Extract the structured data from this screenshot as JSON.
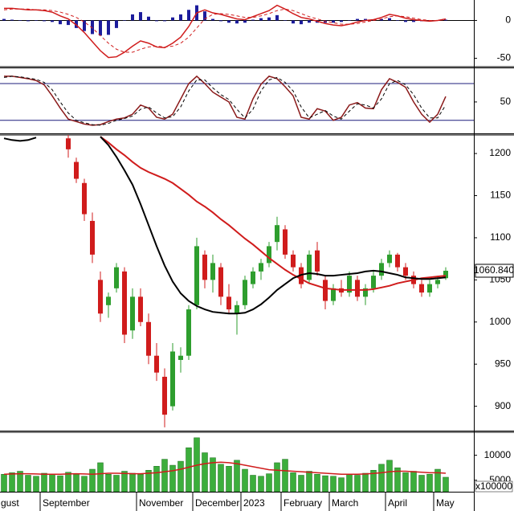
{
  "chart_data": [
    {
      "type": "macd",
      "ylim": [
        -60,
        27
      ],
      "yticks": [
        0,
        -50
      ],
      "zero_line": true,
      "histogram": {
        "color": "#1c1c9c",
        "values": [
          2,
          1,
          0,
          -1,
          0,
          -1,
          -2,
          -5,
          -6,
          -10,
          -14,
          -18,
          -20,
          -19,
          -10,
          0,
          8,
          11,
          5,
          -1,
          -1,
          4,
          8,
          14,
          20,
          12,
          2,
          -1,
          -3,
          -4,
          -3,
          1,
          3,
          4,
          7,
          0,
          -4,
          -5,
          -3,
          -3,
          -3,
          -3,
          -2,
          0,
          2,
          2,
          1,
          2,
          3,
          0,
          -2,
          -2,
          -1,
          -1,
          0,
          1
        ]
      },
      "series": [
        {
          "color": "#d01c1c",
          "dashed": false,
          "values": [
            16,
            16,
            15,
            14,
            14,
            13,
            11,
            6,
            2,
            -6,
            -16,
            -28,
            -40,
            -49,
            -48,
            -42,
            -34,
            -27,
            -30,
            -35,
            -36,
            -30,
            -22,
            -8,
            10,
            14,
            10,
            8,
            5,
            2,
            1,
            5,
            9,
            13,
            20,
            15,
            9,
            4,
            2,
            -1,
            -4,
            -6,
            -7,
            -5,
            -2,
            0,
            1,
            4,
            8,
            6,
            3,
            1,
            0,
            -1,
            0,
            2
          ]
        },
        {
          "color": "#d01c1c",
          "dashed": true,
          "values": [
            14,
            15,
            15,
            15,
            14,
            14,
            13,
            11,
            8,
            4,
            -2,
            -10,
            -20,
            -30,
            -38,
            -42,
            -42,
            -38,
            -35,
            -34,
            -35,
            -34,
            -30,
            -22,
            -10,
            2,
            8,
            9,
            8,
            6,
            4,
            4,
            6,
            9,
            13,
            15,
            13,
            9,
            5,
            2,
            -1,
            -3,
            -5,
            -5,
            -4,
            -2,
            0,
            2,
            5,
            6,
            5,
            3,
            1,
            0,
            0,
            1
          ]
        }
      ]
    },
    {
      "type": "oscillator",
      "ylim": [
        0,
        105
      ],
      "yticks": [
        50
      ],
      "levels": [
        80,
        20
      ],
      "level_color": "#1c1c7c",
      "series": [
        {
          "color": "#8b1a1a",
          "dashed": false,
          "values": [
            92,
            92,
            90,
            88,
            85,
            78,
            60,
            40,
            22,
            18,
            14,
            12,
            13,
            18,
            22,
            24,
            30,
            45,
            40,
            25,
            22,
            30,
            55,
            80,
            92,
            80,
            66,
            58,
            50,
            25,
            22,
            55,
            79,
            92,
            88,
            75,
            60,
            25,
            22,
            39,
            35,
            20,
            25,
            45,
            49,
            40,
            39,
            70,
            88,
            82,
            74,
            50,
            30,
            17,
            30,
            59
          ]
        },
        {
          "color": "#000000",
          "dashed": true,
          "values": [
            90,
            92,
            91,
            89,
            87,
            82,
            70,
            50,
            32,
            20,
            16,
            13,
            12,
            15,
            20,
            23,
            27,
            38,
            42,
            32,
            24,
            26,
            42,
            68,
            86,
            86,
            73,
            62,
            54,
            38,
            24,
            38,
            68,
            86,
            90,
            82,
            68,
            42,
            24,
            30,
            36,
            27,
            22,
            35,
            47,
            45,
            40,
            55,
            80,
            85,
            78,
            62,
            40,
            24,
            24,
            45
          ]
        }
      ]
    },
    {
      "type": "candlestick",
      "ylim": [
        872,
        1222
      ],
      "yticks": [
        1200,
        1150,
        1100,
        1050,
        1000,
        950,
        900
      ],
      "up_color": "#2e9e2e",
      "down_color": "#d01c1c",
      "open": [
        null,
        null,
        null,
        null,
        null,
        null,
        null,
        null,
        1218,
        1190,
        1165,
        1120,
        1050,
        1020,
        1040,
        1060,
        990,
        1030,
        1000,
        960,
        935,
        900,
        955,
        960,
        1020,
        1080,
        1050,
        1065,
        1030,
        1010,
        1020,
        1045,
        1060,
        1070,
        1095,
        1110,
        1080,
        1065,
        1050,
        1085,
        1050,
        1025,
        1040,
        1035,
        1050,
        1030,
        1040,
        1055,
        1070,
        1080,
        1065,
        1055,
        1045,
        1035,
        1045,
        1052
      ],
      "high": [
        null,
        null,
        null,
        null,
        null,
        null,
        null,
        null,
        1222,
        1195,
        1170,
        1130,
        1060,
        1035,
        1070,
        1065,
        1040,
        1040,
        1010,
        975,
        945,
        975,
        970,
        1020,
        1100,
        1085,
        1080,
        1070,
        1045,
        1025,
        1055,
        1065,
        1075,
        1095,
        1125,
        1115,
        1085,
        1070,
        1085,
        1095,
        1055,
        1045,
        1050,
        1060,
        1055,
        1045,
        1060,
        1075,
        1085,
        1082,
        1070,
        1060,
        1050,
        1050,
        1055,
        1065
      ],
      "low": [
        null,
        null,
        null,
        null,
        null,
        null,
        null,
        null,
        1195,
        1165,
        1120,
        1070,
        1000,
        1005,
        1035,
        975,
        980,
        995,
        950,
        930,
        875,
        895,
        940,
        955,
        1015,
        1040,
        1035,
        1020,
        1010,
        985,
        1015,
        1040,
        1050,
        1065,
        1085,
        1075,
        1060,
        1040,
        1045,
        1055,
        1015,
        1020,
        1030,
        1030,
        1025,
        1020,
        1035,
        1050,
        1065,
        1060,
        1050,
        1040,
        1030,
        1030,
        1040,
        1050
      ],
      "close": [
        null,
        null,
        null,
        null,
        null,
        null,
        null,
        null,
        1205,
        1170,
        1128,
        1080,
        1010,
        1030,
        1065,
        985,
        1030,
        1000,
        960,
        940,
        890,
        965,
        960,
        1015,
        1090,
        1050,
        1070,
        1030,
        1015,
        1020,
        1050,
        1060,
        1070,
        1090,
        1115,
        1080,
        1065,
        1045,
        1080,
        1060,
        1025,
        1040,
        1035,
        1055,
        1030,
        1040,
        1055,
        1070,
        1080,
        1065,
        1055,
        1045,
        1035,
        1045,
        1050,
        1060.84
      ],
      "last_label": {
        "value": 1060.84,
        "label": "1060.840"
      },
      "series": [
        {
          "color": "#d01c1c",
          "dashed": false,
          "values": [
            null,
            null,
            null,
            null,
            null,
            null,
            null,
            null,
            null,
            null,
            null,
            null,
            1220,
            1213,
            1205,
            1198,
            1190,
            1183,
            1178,
            1174,
            1170,
            1165,
            1158,
            1151,
            1143,
            1137,
            1130,
            1122,
            1115,
            1107,
            1099,
            1092,
            1084,
            1076,
            1069,
            1062,
            1056,
            1051,
            1046,
            1043,
            1040,
            1039,
            1038,
            1038,
            1038,
            1038,
            1039,
            1041,
            1043,
            1046,
            1048,
            1050,
            1052,
            1053,
            1054,
            1055
          ]
        },
        {
          "color": "#000000",
          "dashed": false,
          "values": [
            1218,
            1216,
            1215,
            1216,
            1219,
            null,
            null,
            null,
            null,
            null,
            null,
            null,
            1220,
            1210,
            1196,
            1180,
            1163,
            1140,
            1115,
            1090,
            1067,
            1048,
            1034,
            1025,
            1019,
            1015,
            1012,
            1011,
            1010,
            1010,
            1011,
            1015,
            1021,
            1029,
            1038,
            1045,
            1052,
            1056,
            1058,
            1057,
            1055,
            1055,
            1056,
            1057,
            1058,
            1060,
            1061,
            1060,
            1058,
            1056,
            1053,
            1052,
            1051,
            1051,
            1052,
            1053
          ]
        }
      ]
    },
    {
      "type": "bar",
      "ylim": [
        2700,
        14600
      ],
      "yticks": [
        10000,
        5000
      ],
      "unit_label": "x100000",
      "color": "#3cae3c",
      "categories": [
        "gust",
        null,
        null,
        null,
        null,
        "September",
        null,
        null,
        null,
        null,
        null,
        null,
        null,
        null,
        null,
        null,
        null,
        "November",
        null,
        null,
        null,
        null,
        null,
        null,
        "December",
        null,
        null,
        null,
        null,
        null,
        "2023",
        null,
        null,
        null,
        null,
        "February",
        null,
        null,
        null,
        null,
        null,
        "March",
        null,
        null,
        null,
        null,
        null,
        null,
        "April",
        null,
        null,
        null,
        null,
        null,
        "May",
        null
      ],
      "values": [
        6200,
        6500,
        6800,
        6000,
        5800,
        6400,
        6200,
        5900,
        6600,
        6300,
        5800,
        7200,
        8500,
        6200,
        6000,
        6800,
        6400,
        6200,
        7000,
        7800,
        9200,
        8000,
        8800,
        11500,
        13500,
        10500,
        9500,
        8200,
        7800,
        9000,
        7200,
        6000,
        5800,
        6300,
        8500,
        9200,
        6500,
        6000,
        6800,
        6200,
        5900,
        5800,
        5500,
        6200,
        6000,
        6400,
        7000,
        8200,
        9000,
        7500,
        6500,
        6800,
        6000,
        6200,
        7200,
        5600
      ],
      "series": [
        {
          "color": "#d01c1c",
          "dashed": false,
          "values": [
            6200,
            6250,
            6300,
            6300,
            6250,
            6200,
            6200,
            6200,
            6250,
            6300,
            6250,
            6200,
            6300,
            6400,
            6400,
            6350,
            6300,
            6300,
            6400,
            6500,
            6700,
            6900,
            7200,
            7600,
            8000,
            8300,
            8500,
            8600,
            8500,
            8300,
            8000,
            7700,
            7400,
            7100,
            7000,
            6900,
            6800,
            6700,
            6600,
            6500,
            6400,
            6300,
            6200,
            6200,
            6200,
            6250,
            6350,
            6500,
            6700,
            6800,
            6800,
            6700,
            6600,
            6500,
            6500,
            6400
          ]
        }
      ]
    }
  ]
}
